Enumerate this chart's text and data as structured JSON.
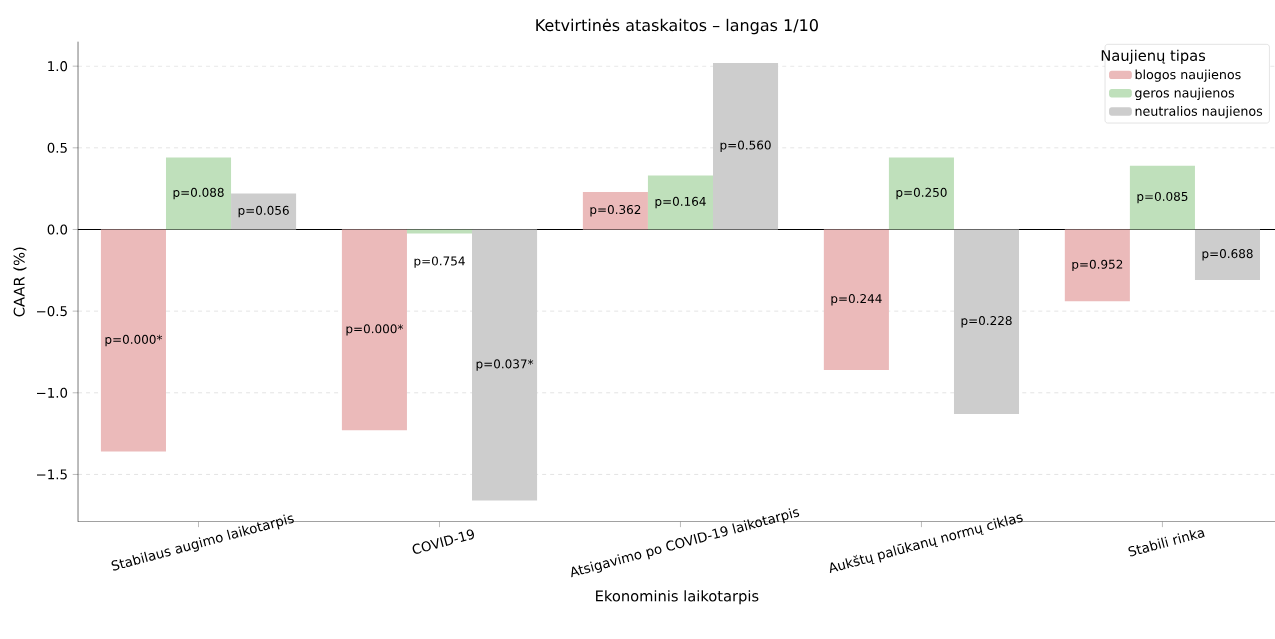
{
  "chart_data": {
    "type": "bar",
    "title": "Ketvirtinės ataskaitos – langas 1/10",
    "xlabel": "Ekonominis laikotarpis",
    "ylabel": "CAAR (%)",
    "legend_title": "Naujienų tipas",
    "categories": [
      "Stabilaus augimo laikotarpis",
      "COVID-19",
      "Atsigavimo po COVID-19 laikotarpis",
      "Aukštų palūkanų normų ciklas",
      "Stabili rinka"
    ],
    "series": [
      {
        "name": "blogos naujienos",
        "color": "#ebbaba",
        "values": [
          -1.36,
          -1.23,
          0.23,
          -0.86,
          -0.44
        ]
      },
      {
        "name": "geros naujienos",
        "color": "#bfe0bb",
        "values": [
          0.44,
          -0.025,
          0.33,
          0.44,
          0.39
        ]
      },
      {
        "name": "neutralios naujienos",
        "color": "#cdcdcd",
        "values": [
          0.22,
          -1.66,
          1.02,
          -1.13,
          -0.31
        ]
      }
    ],
    "annotations": [
      "p=0.000*",
      "p=0.000*",
      "p=0.362",
      "p=0.244",
      "p=0.952",
      "p=0.088",
      "p=0.754",
      "p=0.164",
      "p=0.250",
      "p=0.085",
      "p=0.056",
      "p=0.037*",
      "p=0.560",
      "p=0.228",
      "p=0.688"
    ],
    "ylim": [
      -1.79,
      1.15
    ],
    "yticks": [
      {
        "value": -1.5,
        "label": "−1.5"
      },
      {
        "value": -1.0,
        "label": "−1.0"
      },
      {
        "value": -0.5,
        "label": "−0.5"
      },
      {
        "value": 0.0,
        "label": "0.0"
      },
      {
        "value": 0.5,
        "label": "0.5"
      },
      {
        "value": 1.0,
        "label": "1.0"
      }
    ],
    "ref_lines": [
      {
        "axis": "y",
        "value": 0,
        "color": "#000000"
      }
    ],
    "grid": "y",
    "legend": "top right"
  }
}
